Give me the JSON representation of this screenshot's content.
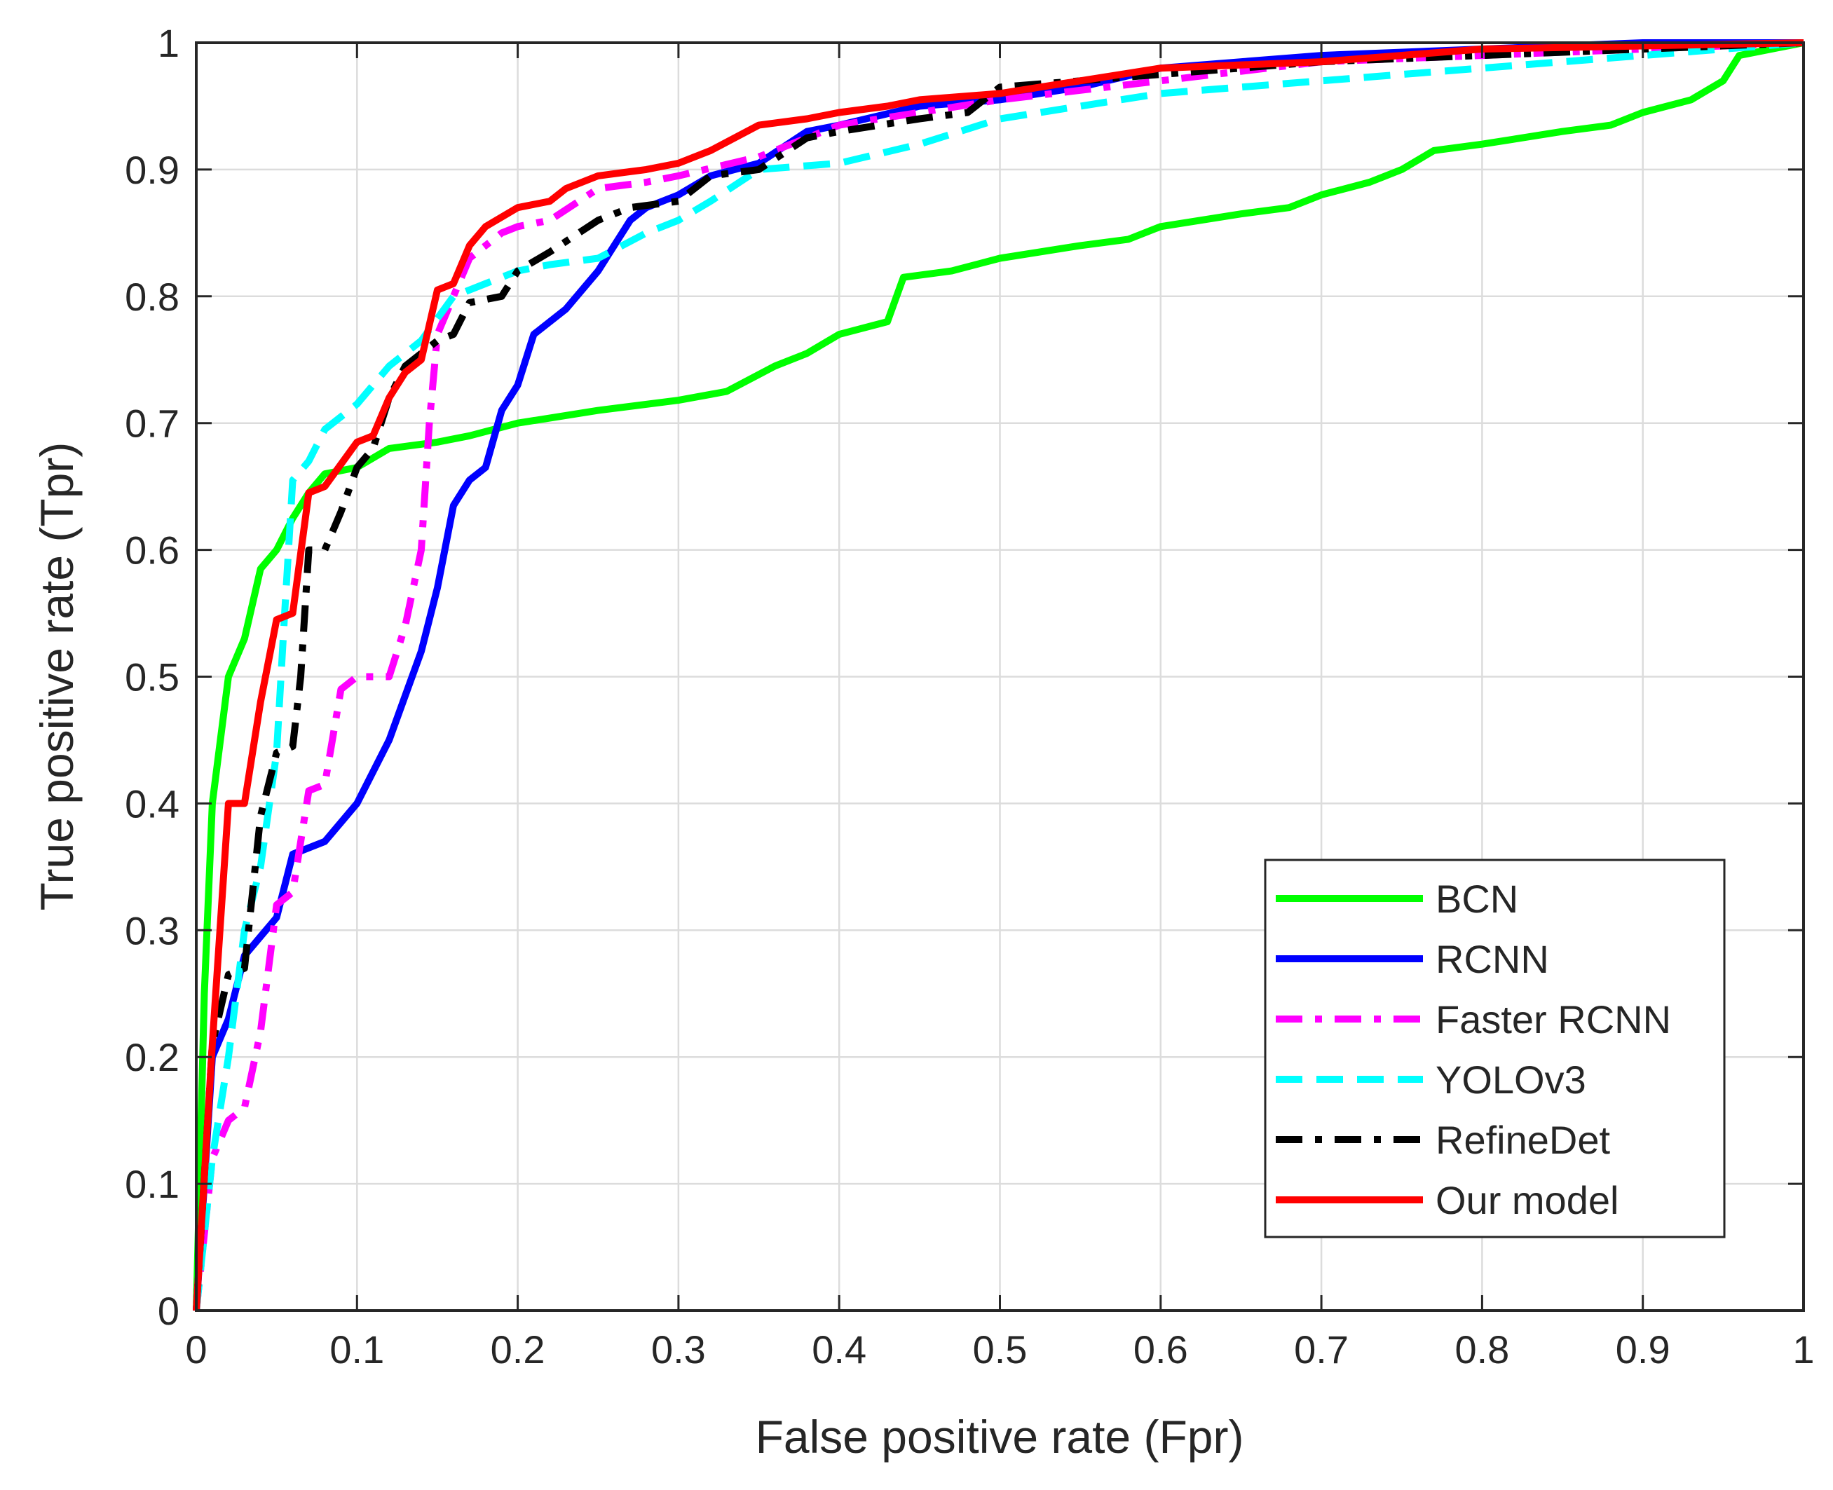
{
  "chart_data": {
    "type": "line",
    "title": "",
    "xlabel": "False positive rate (Fpr)",
    "ylabel": "True positive rate (Tpr)",
    "xlim": [
      0,
      1
    ],
    "ylim": [
      0,
      1
    ],
    "xticks": [
      "0",
      "0.1",
      "0.2",
      "0.3",
      "0.4",
      "0.5",
      "0.6",
      "0.7",
      "0.8",
      "0.9",
      "1"
    ],
    "yticks": [
      "0",
      "0.1",
      "0.2",
      "0.3",
      "0.4",
      "0.5",
      "0.6",
      "0.7",
      "0.8",
      "0.9",
      "1"
    ],
    "grid": true,
    "legend_position": "lower-right",
    "series": [
      {
        "name": "BCN",
        "color": "#00ff00",
        "dash": "solid",
        "points": [
          [
            0,
            0
          ],
          [
            0.005,
            0.25
          ],
          [
            0.01,
            0.4
          ],
          [
            0.02,
            0.5
          ],
          [
            0.03,
            0.53
          ],
          [
            0.04,
            0.585
          ],
          [
            0.05,
            0.6
          ],
          [
            0.06,
            0.625
          ],
          [
            0.07,
            0.645
          ],
          [
            0.08,
            0.66
          ],
          [
            0.1,
            0.665
          ],
          [
            0.12,
            0.68
          ],
          [
            0.15,
            0.685
          ],
          [
            0.17,
            0.69
          ],
          [
            0.2,
            0.7
          ],
          [
            0.25,
            0.71
          ],
          [
            0.3,
            0.718
          ],
          [
            0.33,
            0.725
          ],
          [
            0.36,
            0.745
          ],
          [
            0.38,
            0.755
          ],
          [
            0.4,
            0.77
          ],
          [
            0.43,
            0.78
          ],
          [
            0.44,
            0.815
          ],
          [
            0.47,
            0.82
          ],
          [
            0.5,
            0.83
          ],
          [
            0.55,
            0.84
          ],
          [
            0.58,
            0.845
          ],
          [
            0.6,
            0.855
          ],
          [
            0.65,
            0.865
          ],
          [
            0.68,
            0.87
          ],
          [
            0.7,
            0.88
          ],
          [
            0.73,
            0.89
          ],
          [
            0.75,
            0.9
          ],
          [
            0.77,
            0.915
          ],
          [
            0.8,
            0.92
          ],
          [
            0.85,
            0.93
          ],
          [
            0.88,
            0.935
          ],
          [
            0.9,
            0.945
          ],
          [
            0.93,
            0.955
          ],
          [
            0.95,
            0.97
          ],
          [
            0.96,
            0.99
          ],
          [
            1,
            1
          ]
        ]
      },
      {
        "name": "RCNN",
        "color": "#0000ff",
        "dash": "solid",
        "points": [
          [
            0,
            0
          ],
          [
            0.01,
            0.2
          ],
          [
            0.02,
            0.23
          ],
          [
            0.03,
            0.28
          ],
          [
            0.05,
            0.31
          ],
          [
            0.06,
            0.36
          ],
          [
            0.08,
            0.37
          ],
          [
            0.09,
            0.385
          ],
          [
            0.1,
            0.4
          ],
          [
            0.12,
            0.45
          ],
          [
            0.14,
            0.52
          ],
          [
            0.15,
            0.57
          ],
          [
            0.16,
            0.635
          ],
          [
            0.17,
            0.655
          ],
          [
            0.18,
            0.665
          ],
          [
            0.19,
            0.71
          ],
          [
            0.2,
            0.73
          ],
          [
            0.21,
            0.77
          ],
          [
            0.23,
            0.79
          ],
          [
            0.25,
            0.82
          ],
          [
            0.27,
            0.86
          ],
          [
            0.28,
            0.87
          ],
          [
            0.3,
            0.88
          ],
          [
            0.32,
            0.895
          ],
          [
            0.35,
            0.905
          ],
          [
            0.38,
            0.93
          ],
          [
            0.4,
            0.935
          ],
          [
            0.45,
            0.95
          ],
          [
            0.5,
            0.955
          ],
          [
            0.55,
            0.965
          ],
          [
            0.6,
            0.98
          ],
          [
            0.7,
            0.99
          ],
          [
            0.8,
            0.995
          ],
          [
            0.9,
            1
          ],
          [
            1,
            1
          ]
        ]
      },
      {
        "name": "Faster RCNN",
        "color": "#ff00ff",
        "dash": "dashdot",
        "points": [
          [
            0,
            0
          ],
          [
            0.01,
            0.12
          ],
          [
            0.02,
            0.15
          ],
          [
            0.03,
            0.16
          ],
          [
            0.04,
            0.22
          ],
          [
            0.05,
            0.32
          ],
          [
            0.06,
            0.33
          ],
          [
            0.07,
            0.41
          ],
          [
            0.08,
            0.415
          ],
          [
            0.09,
            0.49
          ],
          [
            0.1,
            0.5
          ],
          [
            0.12,
            0.5
          ],
          [
            0.13,
            0.54
          ],
          [
            0.14,
            0.6
          ],
          [
            0.145,
            0.7
          ],
          [
            0.15,
            0.77
          ],
          [
            0.16,
            0.8
          ],
          [
            0.17,
            0.83
          ],
          [
            0.18,
            0.84
          ],
          [
            0.19,
            0.85
          ],
          [
            0.2,
            0.855
          ],
          [
            0.22,
            0.86
          ],
          [
            0.25,
            0.885
          ],
          [
            0.28,
            0.89
          ],
          [
            0.3,
            0.895
          ],
          [
            0.35,
            0.91
          ],
          [
            0.4,
            0.935
          ],
          [
            0.45,
            0.945
          ],
          [
            0.5,
            0.955
          ],
          [
            0.6,
            0.97
          ],
          [
            0.7,
            0.985
          ],
          [
            0.8,
            0.99
          ],
          [
            0.9,
            0.995
          ],
          [
            1,
            1
          ]
        ]
      },
      {
        "name": "YOLOv3",
        "color": "#00ffff",
        "dash": "dashed",
        "points": [
          [
            0,
            0
          ],
          [
            0.01,
            0.12
          ],
          [
            0.02,
            0.2
          ],
          [
            0.03,
            0.3
          ],
          [
            0.04,
            0.35
          ],
          [
            0.05,
            0.44
          ],
          [
            0.055,
            0.55
          ],
          [
            0.06,
            0.655
          ],
          [
            0.07,
            0.67
          ],
          [
            0.08,
            0.695
          ],
          [
            0.1,
            0.715
          ],
          [
            0.12,
            0.745
          ],
          [
            0.14,
            0.765
          ],
          [
            0.16,
            0.8
          ],
          [
            0.18,
            0.81
          ],
          [
            0.2,
            0.82
          ],
          [
            0.22,
            0.825
          ],
          [
            0.25,
            0.83
          ],
          [
            0.28,
            0.85
          ],
          [
            0.3,
            0.86
          ],
          [
            0.32,
            0.875
          ],
          [
            0.35,
            0.9
          ],
          [
            0.4,
            0.905
          ],
          [
            0.45,
            0.92
          ],
          [
            0.5,
            0.94
          ],
          [
            0.55,
            0.95
          ],
          [
            0.6,
            0.96
          ],
          [
            0.65,
            0.965
          ],
          [
            0.7,
            0.97
          ],
          [
            0.75,
            0.975
          ],
          [
            0.8,
            0.98
          ],
          [
            0.9,
            0.99
          ],
          [
            1,
            1
          ]
        ]
      },
      {
        "name": "RefineDet",
        "color": "#000000",
        "dash": "dashdot",
        "points": [
          [
            0,
            0
          ],
          [
            0.01,
            0.21
          ],
          [
            0.02,
            0.265
          ],
          [
            0.03,
            0.27
          ],
          [
            0.035,
            0.33
          ],
          [
            0.04,
            0.39
          ],
          [
            0.05,
            0.44
          ],
          [
            0.06,
            0.445
          ],
          [
            0.065,
            0.5
          ],
          [
            0.07,
            0.6
          ],
          [
            0.08,
            0.6
          ],
          [
            0.09,
            0.63
          ],
          [
            0.1,
            0.665
          ],
          [
            0.11,
            0.68
          ],
          [
            0.12,
            0.72
          ],
          [
            0.13,
            0.745
          ],
          [
            0.15,
            0.765
          ],
          [
            0.16,
            0.77
          ],
          [
            0.17,
            0.795
          ],
          [
            0.19,
            0.8
          ],
          [
            0.2,
            0.82
          ],
          [
            0.22,
            0.835
          ],
          [
            0.25,
            0.86
          ],
          [
            0.27,
            0.87
          ],
          [
            0.3,
            0.875
          ],
          [
            0.32,
            0.895
          ],
          [
            0.35,
            0.9
          ],
          [
            0.38,
            0.925
          ],
          [
            0.4,
            0.93
          ],
          [
            0.45,
            0.94
          ],
          [
            0.48,
            0.945
          ],
          [
            0.5,
            0.965
          ],
          [
            0.55,
            0.97
          ],
          [
            0.6,
            0.975
          ],
          [
            0.7,
            0.985
          ],
          [
            0.8,
            0.99
          ],
          [
            0.9,
            0.995
          ],
          [
            1,
            1
          ]
        ]
      },
      {
        "name": "Our model",
        "color": "#ff0000",
        "dash": "solid",
        "points": [
          [
            0,
            0
          ],
          [
            0.01,
            0.21
          ],
          [
            0.02,
            0.4
          ],
          [
            0.03,
            0.4
          ],
          [
            0.04,
            0.48
          ],
          [
            0.05,
            0.545
          ],
          [
            0.06,
            0.55
          ],
          [
            0.07,
            0.645
          ],
          [
            0.08,
            0.65
          ],
          [
            0.1,
            0.685
          ],
          [
            0.11,
            0.69
          ],
          [
            0.12,
            0.72
          ],
          [
            0.13,
            0.74
          ],
          [
            0.14,
            0.75
          ],
          [
            0.15,
            0.805
          ],
          [
            0.16,
            0.81
          ],
          [
            0.17,
            0.84
          ],
          [
            0.18,
            0.855
          ],
          [
            0.2,
            0.87
          ],
          [
            0.22,
            0.875
          ],
          [
            0.23,
            0.885
          ],
          [
            0.25,
            0.895
          ],
          [
            0.28,
            0.9
          ],
          [
            0.3,
            0.905
          ],
          [
            0.32,
            0.915
          ],
          [
            0.35,
            0.935
          ],
          [
            0.38,
            0.94
          ],
          [
            0.4,
            0.945
          ],
          [
            0.43,
            0.95
          ],
          [
            0.45,
            0.955
          ],
          [
            0.5,
            0.96
          ],
          [
            0.55,
            0.97
          ],
          [
            0.6,
            0.98
          ],
          [
            0.7,
            0.985
          ],
          [
            0.8,
            0.995
          ],
          [
            1,
            1
          ]
        ]
      }
    ]
  }
}
